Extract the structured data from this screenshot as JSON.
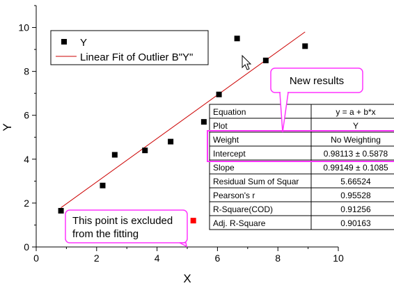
{
  "chart_data": {
    "type": "scatter",
    "xlabel": "X",
    "ylabel": "Y",
    "xlim": [
      0,
      10
    ],
    "ylim": [
      0,
      11
    ],
    "x_ticks": [
      "0",
      "2",
      "4",
      "6",
      "8",
      "10"
    ],
    "y_ticks": [
      "0",
      "2",
      "4",
      "6",
      "8",
      "10"
    ],
    "grid": false,
    "legend_position": "top-left",
    "series": [
      {
        "name": "Y",
        "marker": "square",
        "color": "#000000",
        "points": [
          {
            "x": 0.82,
            "y": 1.65
          },
          {
            "x": 2.2,
            "y": 2.8
          },
          {
            "x": 2.6,
            "y": 4.2
          },
          {
            "x": 3.6,
            "y": 4.4
          },
          {
            "x": 4.45,
            "y": 4.8
          },
          {
            "x": 5.55,
            "y": 5.7
          },
          {
            "x": 6.05,
            "y": 6.95
          },
          {
            "x": 6.65,
            "y": 9.5
          },
          {
            "x": 7.6,
            "y": 8.5
          },
          {
            "x": 8.9,
            "y": 9.15
          }
        ]
      },
      {
        "name": "Linear Fit of Outlier B\"Y\"",
        "type": "line",
        "color": "#cc0000",
        "points": [
          {
            "x": 0.82,
            "y": 1.79
          },
          {
            "x": 8.9,
            "y": 9.8
          }
        ]
      }
    ],
    "excluded_point": {
      "x": 5.2,
      "y": 1.2,
      "color": "#ff0000"
    },
    "annotations": [
      {
        "id": "excluded",
        "text_lines": [
          "This point is excluded",
          "from the fitting"
        ],
        "border_color": "#ff33ff"
      },
      {
        "id": "new_results",
        "text": "New results",
        "border_color": "#ff33ff"
      }
    ],
    "results_table": {
      "rows": [
        {
          "label": "Equation",
          "value": "y = a + b*x"
        },
        {
          "label": "Plot",
          "value": "Y"
        },
        {
          "label": "Weight",
          "value": "No Weighting"
        },
        {
          "label": "Intercept",
          "value": "0.98113 ± 0.5878"
        },
        {
          "label": "Slope",
          "value": "0.99149 ± 0.1085"
        },
        {
          "label": "Residual Sum of Squar",
          "value": "5.66524"
        },
        {
          "label": "Pearson's r",
          "value": "0.95528"
        },
        {
          "label": "R-Square(COD)",
          "value": "0.91256"
        },
        {
          "label": "Adj. R-Square",
          "value": "0.90163"
        }
      ],
      "highlighted_rows": [
        "Weight",
        "Intercept"
      ],
      "highlight_color": "#ff33ff"
    }
  }
}
